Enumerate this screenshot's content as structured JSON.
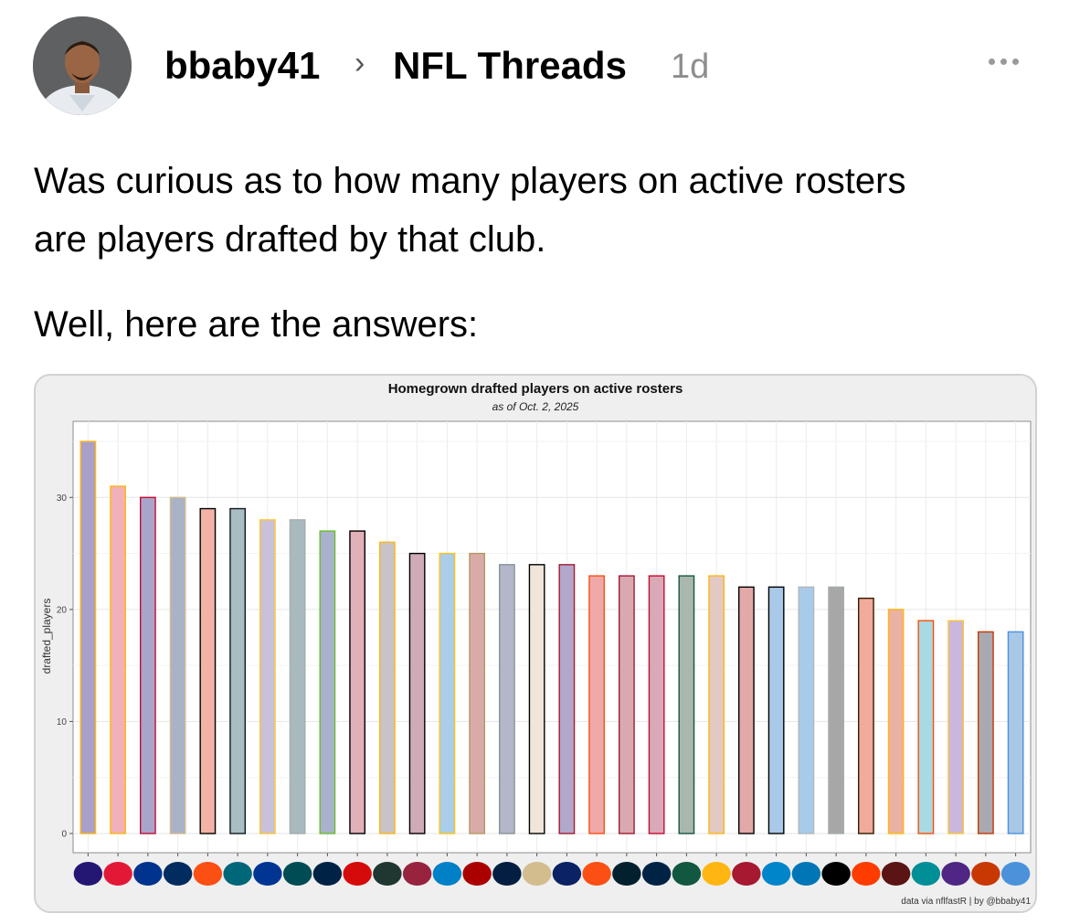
{
  "post": {
    "username": "bbaby41",
    "breadcrumb_separator": "›",
    "community": "NFL Threads",
    "age": "1d",
    "text_line1": "Was curious as to how many players on active rosters",
    "text_line2": "are players drafted by that club.",
    "text_line3": "Well, here are the answers:"
  },
  "chart_data": {
    "type": "bar",
    "title": "Homegrown drafted players on active rosters",
    "subtitle": "as of Oct. 2, 2025",
    "ylabel": "drafted_players",
    "xlabel": "",
    "ylim": [
      0,
      35
    ],
    "yticks": [
      0,
      10,
      20,
      30
    ],
    "grid": true,
    "caption": "data via nflfastR | by @bbaby41",
    "x_axis_icons": [
      "ravens-logo",
      "chiefs-logo",
      "bills-logo",
      "colts-logo",
      "bengals-logo",
      "jaguars-logo",
      "rams-logo",
      "eagles-logo",
      "seahawks-logo",
      "buccaneers-logo",
      "packers-logo",
      "cardinals-logo",
      "chargers-logo",
      "49ers-logo",
      "cowboys-logo",
      "saints-logo",
      "giants-logo",
      "broncos-logo",
      "texans-logo",
      "patriots-logo",
      "jets-logo",
      "steelers-logo",
      "falcons-logo",
      "panthers-logo",
      "lions-logo",
      "raiders-logo",
      "browns-logo",
      "commanders-logo",
      "dolphins-logo",
      "vikings-logo",
      "bears-logo",
      "titans-logo"
    ],
    "values": [
      35,
      31,
      30,
      30,
      29,
      29,
      28,
      28,
      27,
      27,
      26,
      25,
      25,
      25,
      24,
      24,
      24,
      23,
      23,
      23,
      23,
      23,
      22,
      22,
      22,
      22,
      21,
      20,
      19,
      19,
      18,
      18
    ],
    "fills": [
      "#a99fc9",
      "#f2b1b8",
      "#a9a4cc",
      "#a9b2c6",
      "#f4b2a7",
      "#a9bec0",
      "#c9c0d9",
      "#a9babe",
      "#a9b2cc",
      "#e2b0b8",
      "#c9c2c9",
      "#cfabb6",
      "#a9cdeb",
      "#d9aba8",
      "#b3b7c9",
      "#efe6d9",
      "#b1a8cc",
      "#efa9a8",
      "#d9a9b3",
      "#d9a9b8",
      "#a9b7ae",
      "#e3c9c4",
      "#e3a9a9",
      "#a9c9e8",
      "#a9cbea",
      "#a7a7a7",
      "#f1aa9c",
      "#eab2a3",
      "#a9d9e3",
      "#c9b7dd",
      "#a9a9b1",
      "#a9c7e6"
    ],
    "strokes": [
      "#ffb612",
      "#ffb612",
      "#c60c30",
      "#d3bc8d",
      "#000000",
      "#101820",
      "#ffc62f",
      "#a5acaf",
      "#69be28",
      "#000000",
      "#ffb612",
      "#000000",
      "#ffc20e",
      "#b3995d",
      "#869397",
      "#000000",
      "#a71930",
      "#fb4f14",
      "#a71930",
      "#c60c30",
      "#125740",
      "#ffb612",
      "#000000",
      "#000000",
      "#b0b7bc",
      "#a5acaf",
      "#311d00",
      "#ffb612",
      "#fc4c02",
      "#ffc62f",
      "#c83803",
      "#4b92db"
    ]
  }
}
